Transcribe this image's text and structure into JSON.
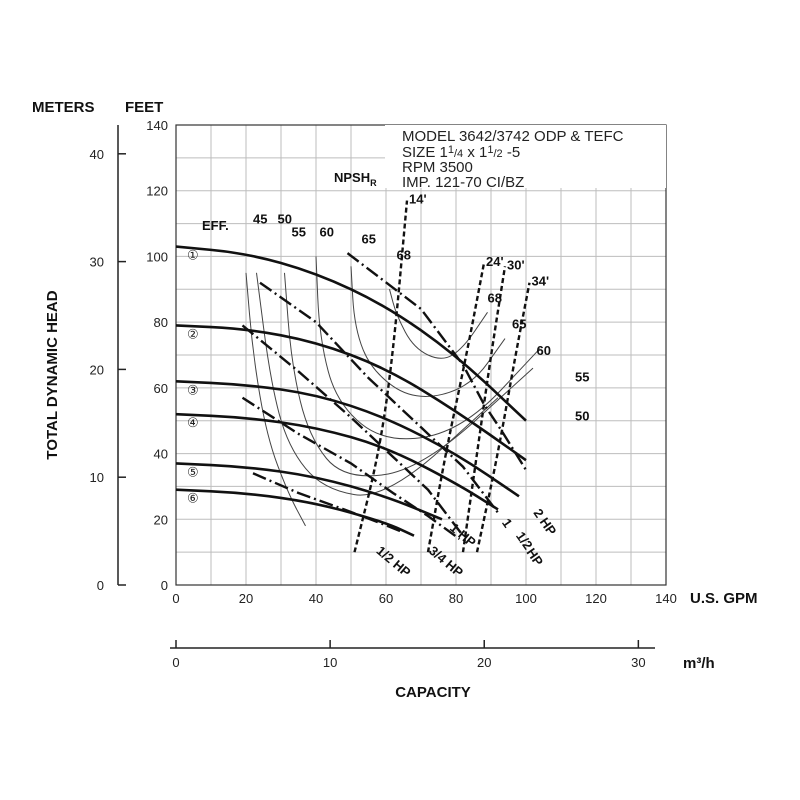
{
  "chart_data": {
    "type": "line",
    "x_axis": {
      "label": "U.S. GPM",
      "range": [
        0,
        140
      ],
      "ticks": [
        "0",
        "20",
        "40",
        "60",
        "80",
        "100",
        "120",
        "140"
      ]
    },
    "x_axis_metric": {
      "label": "m³/h",
      "range": [
        0,
        30
      ],
      "ticks": [
        "0",
        "10",
        "20",
        "30"
      ]
    },
    "x_caption": "CAPACITY",
    "y_axis_feet": {
      "label": "FEET",
      "range": [
        0,
        140
      ],
      "ticks": [
        "0",
        "20",
        "40",
        "60",
        "80",
        "100",
        "120",
        "140"
      ]
    },
    "y_axis_meters": {
      "label": "METERS",
      "range": [
        0,
        40
      ],
      "ticks": [
        "0",
        "10",
        "20",
        "30",
        "40"
      ]
    },
    "y_caption": "TOTAL DYNAMIC HEAD",
    "grid": true,
    "model_box": {
      "line1": "MODEL 3642/3742 ODP & TEFC",
      "line2_pre": "SIZE 1",
      "line2_sup1": "1",
      "line2_sub1": "/4",
      "line2_mid": " x 1",
      "line2_sup2": "1",
      "line2_sub2": "/2",
      "line2_post": " -5",
      "line3": "RPM 3500",
      "line4": "IMP. 121-70 CI/BZ"
    },
    "npsh_label": "NPSH",
    "npsh_sub": "R",
    "eff_label": "EFF.",
    "impeller_curves": [
      {
        "name": "①",
        "x": [
          0,
          20,
          40,
          60,
          80,
          100
        ],
        "y": [
          103,
          101,
          95,
          85,
          70,
          50
        ]
      },
      {
        "name": "②",
        "x": [
          0,
          20,
          40,
          60,
          80,
          100
        ],
        "y": [
          79,
          78,
          74,
          66,
          53,
          38
        ]
      },
      {
        "name": "③",
        "x": [
          0,
          20,
          40,
          60,
          80,
          98
        ],
        "y": [
          62,
          61,
          58,
          51,
          40,
          27
        ]
      },
      {
        "name": "④",
        "x": [
          0,
          20,
          40,
          60,
          80,
          92
        ],
        "y": [
          52,
          51,
          48,
          42,
          31,
          23
        ]
      },
      {
        "name": "⑤",
        "x": [
          0,
          20,
          40,
          60,
          76
        ],
        "y": [
          37,
          36,
          33,
          27,
          20
        ]
      },
      {
        "name": "⑥",
        "x": [
          0,
          20,
          40,
          60,
          68
        ],
        "y": [
          29,
          28,
          25,
          19,
          15
        ]
      }
    ],
    "efficiency_labels": [
      {
        "text": "45",
        "x": 22,
        "y": 110
      },
      {
        "text": "50",
        "x": 29,
        "y": 110
      },
      {
        "text": "55",
        "x": 33,
        "y": 106
      },
      {
        "text": "60",
        "x": 41,
        "y": 106
      },
      {
        "text": "65",
        "x": 53,
        "y": 104
      },
      {
        "text": "68",
        "x": 63,
        "y": 99
      },
      {
        "text": "68",
        "x": 89,
        "y": 86
      },
      {
        "text": "65",
        "x": 96,
        "y": 78
      },
      {
        "text": "60",
        "x": 103,
        "y": 70
      },
      {
        "text": "55",
        "x": 114,
        "y": 62
      },
      {
        "text": "50",
        "x": 114,
        "y": 50
      }
    ],
    "efficiency_curves": [
      {
        "name": "45",
        "x": [
          20,
          22,
          26,
          32,
          37
        ],
        "y": [
          95,
          70,
          45,
          28,
          18
        ]
      },
      {
        "name": "50",
        "x": [
          23,
          27,
          32,
          42,
          60,
          92
        ],
        "y": [
          95,
          62,
          42,
          29,
          26,
          57
        ]
      },
      {
        "name": "55",
        "x": [
          31,
          33,
          38,
          48,
          70,
          102
        ],
        "y": [
          95,
          67,
          45,
          32,
          35,
          66
        ]
      },
      {
        "name": "60",
        "x": [
          40,
          41,
          46,
          60,
          82,
          104
        ],
        "y": [
          100,
          75,
          55,
          43,
          47,
          72
        ]
      },
      {
        "name": "65",
        "x": [
          50,
          51,
          56,
          68,
          84,
          94
        ],
        "y": [
          97,
          78,
          65,
          56,
          60,
          75
        ]
      },
      {
        "name": "68",
        "x": [
          61,
          63,
          68,
          76,
          82,
          89
        ],
        "y": [
          90,
          82,
          72,
          68,
          72,
          83
        ]
      }
    ],
    "hp_lines": [
      {
        "label": "2 HP",
        "x": [
          49,
          70,
          82,
          88,
          93,
          100
        ],
        "y": [
          101,
          84,
          67,
          55,
          47,
          35
        ]
      },
      {
        "label": "1 1/2 HP",
        "x": [
          24,
          40,
          55,
          70,
          82,
          92
        ],
        "y": [
          92,
          80,
          63,
          48,
          36,
          22
        ]
      },
      {
        "label": "1 HP",
        "x": [
          19,
          35,
          50,
          62,
          72,
          82
        ],
        "y": [
          79,
          65,
          51,
          39,
          29,
          15
        ]
      },
      {
        "label": "3/4 HP",
        "x": [
          19,
          35,
          50,
          62,
          72,
          81
        ],
        "y": [
          57,
          46,
          37,
          28,
          21,
          14
        ]
      },
      {
        "label": "1/2 HP",
        "x": [
          22,
          35,
          48,
          58,
          65
        ],
        "y": [
          34,
          28,
          23,
          19,
          16
        ]
      }
    ],
    "hp_labels": [
      {
        "text": "2 HP",
        "x": 102,
        "y": 22,
        "rot": -55
      },
      {
        "text": "1",
        "x": 93,
        "y": 19,
        "rot": -55
      },
      {
        "text": "1/2",
        "x": 97,
        "y": 15,
        "rot": -55
      },
      {
        "text": "HP",
        "x": 100,
        "y": 10,
        "rot": -55
      },
      {
        "text": "1 HP",
        "x": 78,
        "y": 17,
        "rot": -40
      },
      {
        "text": "3/4 HP",
        "x": 72,
        "y": 10,
        "rot": -40
      },
      {
        "text": "1/2 HP",
        "x": 57,
        "y": 10,
        "rot": -40
      }
    ],
    "npsh_lines": [
      {
        "label": "14'",
        "x": [
          51,
          58,
          62,
          66
        ],
        "y": [
          10,
          40,
          70,
          117
        ]
      },
      {
        "label": "24'",
        "x": [
          72,
          77,
          83,
          88
        ],
        "y": [
          10,
          40,
          70,
          98
        ]
      },
      {
        "label": "30'",
        "x": [
          82,
          86,
          90,
          94
        ],
        "y": [
          10,
          40,
          70,
          97
        ]
      },
      {
        "label": "34'",
        "x": [
          86,
          92,
          97,
          101
        ],
        "y": [
          10,
          40,
          70,
          92
        ]
      }
    ]
  }
}
